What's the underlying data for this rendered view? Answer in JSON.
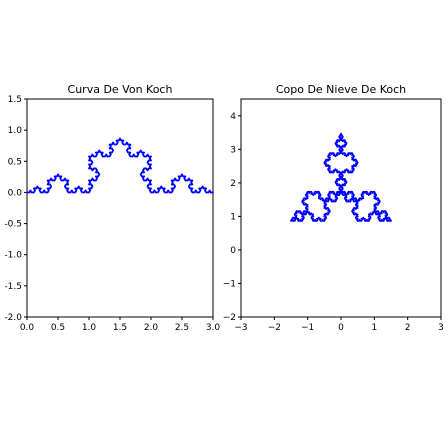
{
  "chart_data": [
    {
      "type": "line",
      "title": "Curva De Von Koch",
      "fractal": "koch-curve",
      "iterations": 4,
      "start": [
        0,
        0
      ],
      "end": [
        3,
        0
      ],
      "xlim": [
        0.0,
        3.0
      ],
      "ylim": [
        -2.0,
        1.5
      ],
      "xticks": [
        0.0,
        0.5,
        1.0,
        1.5,
        2.0,
        2.5,
        3.0
      ],
      "yticks": [
        -2.0,
        -1.5,
        -1.0,
        -0.5,
        0.0,
        0.5,
        1.0,
        1.5
      ],
      "xticklabels": [
        "0.0",
        "0.5",
        "1.0",
        "1.5",
        "2.0",
        "2.5",
        "3.0"
      ],
      "yticklabels": [
        "-2.0",
        "-1.5",
        "-1.0",
        "-0.5",
        "0.0",
        "0.5",
        "1.0",
        "1.5"
      ],
      "color": "#0000ff",
      "grid": false
    },
    {
      "type": "line",
      "title": "Copo De Nieve De Koch",
      "fractal": "koch-snowflake",
      "iterations": 4,
      "vertices": [
        [
          -1.5,
          0.866
        ],
        [
          1.5,
          0.866
        ],
        [
          0,
          3.464
        ]
      ],
      "xlim": [
        -3,
        3
      ],
      "ylim": [
        -2,
        4.5
      ],
      "xticks": [
        -3,
        -2,
        -1,
        0,
        1,
        2,
        3
      ],
      "yticks": [
        -2,
        -1,
        0,
        1,
        2,
        3,
        4
      ],
      "xticklabels": [
        "−3",
        "−2",
        "−1",
        "0",
        "1",
        "2",
        "3"
      ],
      "yticklabels": [
        "−2",
        "−1",
        "0",
        "1",
        "2",
        "3",
        "4"
      ],
      "color": "#0000ff",
      "grid": false
    }
  ]
}
